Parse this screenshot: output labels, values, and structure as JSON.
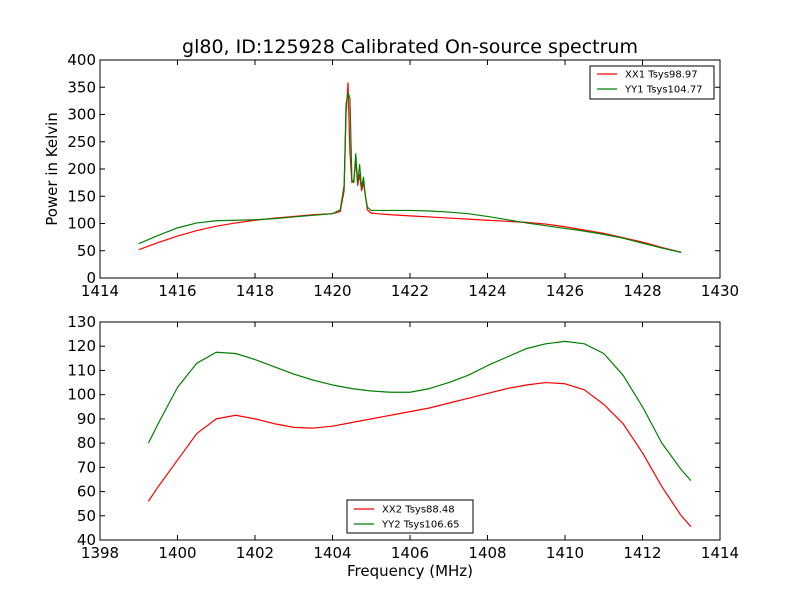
{
  "chart_data": [
    {
      "type": "line",
      "title": "gl80, ID:125928 Calibrated On-source spectrum",
      "xlabel": "",
      "ylabel": "Power in Kelvin",
      "xlim": [
        1414,
        1430
      ],
      "ylim": [
        0,
        400
      ],
      "xticks": [
        "1414",
        "1416",
        "1418",
        "1420",
        "1422",
        "1424",
        "1426",
        "1428",
        "1430"
      ],
      "yticks": [
        "0",
        "50",
        "100",
        "150",
        "200",
        "250",
        "300",
        "350",
        "400"
      ],
      "legend_position": "top-right",
      "series": [
        {
          "name": "XX1 Tsys98.97",
          "color": "#ff0000",
          "x": [
            1415.0,
            1415.5,
            1416.0,
            1416.5,
            1417.0,
            1417.5,
            1418.0,
            1418.5,
            1419.0,
            1419.5,
            1420.0,
            1420.2,
            1420.3,
            1420.35,
            1420.4,
            1420.45,
            1420.5,
            1420.55,
            1420.6,
            1420.65,
            1420.7,
            1420.75,
            1420.8,
            1420.85,
            1420.9,
            1421.0,
            1421.5,
            1422.0,
            1422.5,
            1423.0,
            1423.5,
            1424.0,
            1424.5,
            1425.0,
            1425.5,
            1426.0,
            1426.5,
            1427.0,
            1427.5,
            1428.0,
            1428.5,
            1429.0
          ],
          "y": [
            52,
            65,
            77,
            87,
            95,
            101,
            106,
            110,
            113,
            116,
            118,
            122,
            160,
            300,
            358,
            230,
            175,
            180,
            215,
            170,
            190,
            160,
            175,
            150,
            125,
            119,
            116,
            114,
            112,
            110,
            108,
            106,
            104,
            102,
            99,
            94,
            88,
            82,
            74,
            66,
            56,
            47
          ]
        },
        {
          "name": "YY1 Tsys104.77",
          "color": "#008000",
          "x": [
            1415.0,
            1415.5,
            1416.0,
            1416.5,
            1417.0,
            1417.5,
            1418.0,
            1418.5,
            1419.0,
            1419.5,
            1420.0,
            1420.2,
            1420.3,
            1420.35,
            1420.4,
            1420.45,
            1420.5,
            1420.55,
            1420.6,
            1420.65,
            1420.7,
            1420.75,
            1420.8,
            1420.85,
            1420.9,
            1421.0,
            1421.5,
            1422.0,
            1422.5,
            1423.0,
            1423.5,
            1424.0,
            1424.5,
            1425.0,
            1425.5,
            1426.0,
            1426.5,
            1427.0,
            1427.5,
            1428.0,
            1428.5,
            1429.0
          ],
          "y": [
            63,
            78,
            92,
            101,
            105,
            106,
            107,
            109,
            112,
            115,
            118,
            125,
            170,
            320,
            340,
            330,
            180,
            175,
            228,
            175,
            208,
            165,
            185,
            150,
            130,
            124,
            124,
            124,
            123,
            121,
            118,
            113,
            107,
            101,
            96,
            91,
            86,
            80,
            73,
            64,
            55,
            47
          ]
        }
      ]
    },
    {
      "type": "line",
      "title": "",
      "xlabel": "Frequency (MHz)",
      "ylabel": "",
      "xlim": [
        1398,
        1414
      ],
      "ylim": [
        40,
        130
      ],
      "xticks": [
        "1398",
        "1400",
        "1402",
        "1404",
        "1406",
        "1408",
        "1410",
        "1412",
        "1414"
      ],
      "yticks": [
        "40",
        "50",
        "60",
        "70",
        "80",
        "90",
        "100",
        "110",
        "120",
        "130"
      ],
      "legend_position": "bottom-center",
      "series": [
        {
          "name": "XX2 Tsys88.48",
          "color": "#ff0000",
          "x": [
            1399.25,
            1399.5,
            1400.0,
            1400.5,
            1401.0,
            1401.5,
            1402.0,
            1402.5,
            1403.0,
            1403.5,
            1404.0,
            1404.5,
            1405.0,
            1405.5,
            1406.0,
            1406.5,
            1407.0,
            1407.5,
            1408.0,
            1408.5,
            1409.0,
            1409.5,
            1410.0,
            1410.5,
            1411.0,
            1411.5,
            1412.0,
            1412.5,
            1413.0,
            1413.25
          ],
          "y": [
            56,
            62,
            73,
            84,
            90,
            91.5,
            90,
            88,
            86.5,
            86.2,
            87,
            88.5,
            90,
            91.5,
            93,
            94.5,
            96.5,
            98.5,
            100.5,
            102.5,
            104,
            105,
            104.5,
            102,
            96,
            88,
            76,
            62,
            50,
            45.5
          ]
        },
        {
          "name": "YY2 Tsys106.65",
          "color": "#008000",
          "x": [
            1399.25,
            1399.5,
            1400.0,
            1400.5,
            1401.0,
            1401.5,
            1402.0,
            1402.5,
            1403.0,
            1403.5,
            1404.0,
            1404.5,
            1405.0,
            1405.5,
            1406.0,
            1406.5,
            1407.0,
            1407.5,
            1408.0,
            1408.5,
            1409.0,
            1409.5,
            1410.0,
            1410.5,
            1411.0,
            1411.5,
            1412.0,
            1412.5,
            1413.0,
            1413.25
          ],
          "y": [
            80,
            88,
            103,
            113,
            117.5,
            117,
            114.5,
            111.5,
            108.5,
            106,
            104,
            102.5,
            101.5,
            101,
            101,
            102.5,
            105,
            108,
            112,
            115.5,
            119,
            121,
            122,
            121,
            117,
            108,
            95,
            80,
            69,
            64.5
          ]
        }
      ]
    }
  ]
}
